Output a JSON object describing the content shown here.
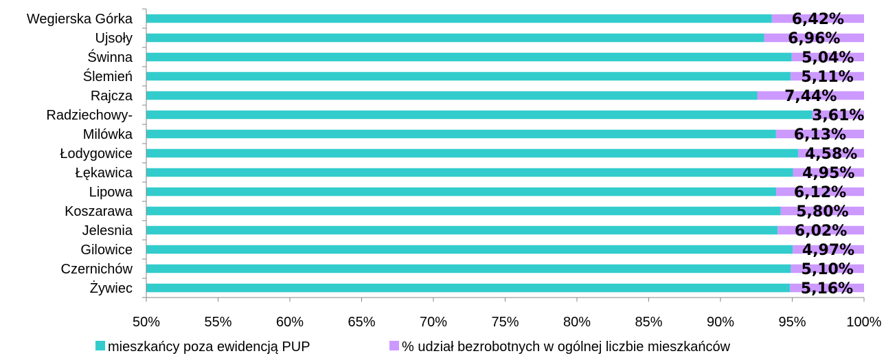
{
  "chart_data": {
    "type": "bar",
    "orientation": "horizontal",
    "stacked": "percent",
    "categories": [
      "Wegierska Górka",
      "Ujsoły",
      "Świnna",
      "Ślemień",
      "Rajcza",
      "Radziechowy-",
      "Milówka",
      "Łodygowice",
      "Łękawica",
      "Lipowa",
      "Koszarawa",
      "Jelesnia",
      "Gilowice",
      "Czernichów",
      "Żywiec"
    ],
    "series": [
      {
        "name": "mieszkańcy poza ewidencją PUP",
        "color": "#33CCCC",
        "values": [
          93.58,
          93.04,
          94.96,
          94.89,
          92.56,
          96.39,
          93.87,
          95.42,
          95.05,
          93.88,
          94.2,
          93.98,
          95.03,
          94.9,
          94.84
        ]
      },
      {
        "name": "% udział bezrobotnych w ogólnej liczbie mieszkańców",
        "color": "#CC99FF",
        "values": [
          6.42,
          6.96,
          5.04,
          5.11,
          7.44,
          3.61,
          6.13,
          4.58,
          4.95,
          6.12,
          5.8,
          6.02,
          4.97,
          5.1,
          5.16
        ],
        "data_labels": [
          "6,42%",
          "6,96%",
          "5,04%",
          "5,11%",
          "7,44%",
          "3,61%",
          "6,13%",
          "4,58%",
          "4,95%",
          "6,12%",
          "5,80%",
          "6,02%",
          "4,97%",
          "5,10%",
          "5,16%"
        ]
      }
    ],
    "xlim": [
      50,
      100
    ],
    "x_ticks": [
      50,
      55,
      60,
      65,
      70,
      75,
      80,
      85,
      90,
      95,
      100
    ],
    "x_tick_labels": [
      "50%",
      "55%",
      "60%",
      "65%",
      "70%",
      "75%",
      "80%",
      "85%",
      "90%",
      "95%",
      "100%"
    ],
    "title": "",
    "xlabel": "",
    "ylabel": "",
    "grid": false,
    "legend_position": "bottom"
  }
}
